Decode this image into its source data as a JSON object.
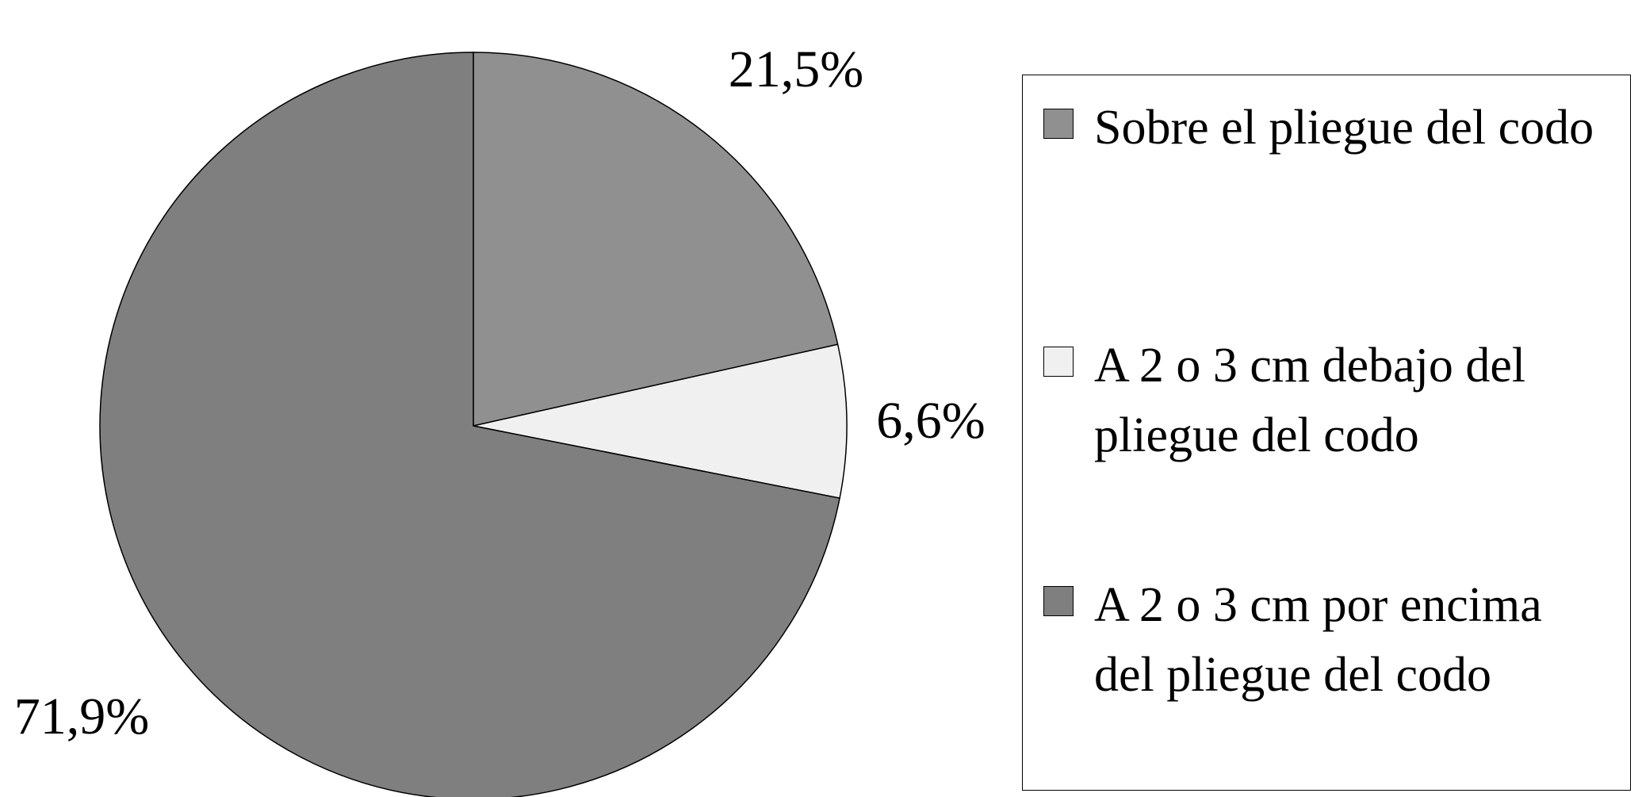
{
  "chart_data": {
    "type": "pie",
    "categories": [
      "Sobre el pliegue del codo",
      "A 2 o 3 cm debajo del pliegue del codo",
      "A 2 o 3 cm por encima del pliegue del codo"
    ],
    "values": [
      21.5,
      6.6,
      71.9
    ],
    "value_labels": [
      "21,5%",
      "6,6%",
      "71,9%"
    ],
    "colors": [
      "#909090",
      "#f0f0f0",
      "#7f7f7f"
    ],
    "legend": "right"
  }
}
